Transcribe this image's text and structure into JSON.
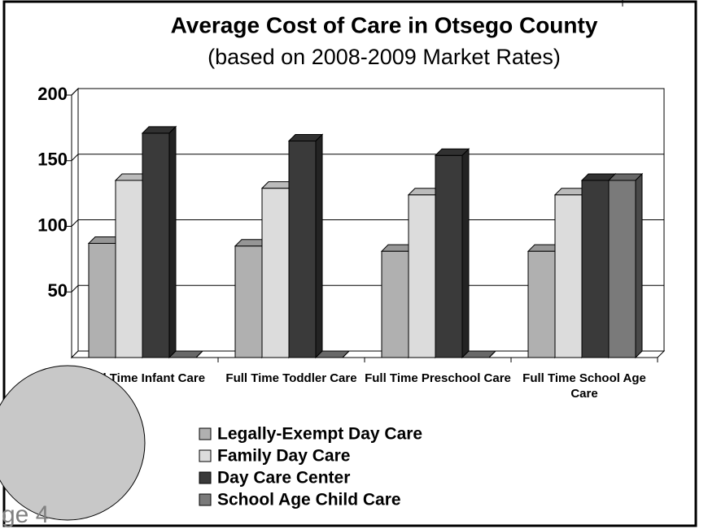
{
  "chart_data": {
    "type": "bar3d",
    "title": "Average Cost of Care in Otsego County",
    "subtitle": "(based on 2008-2009 Market Rates)",
    "categories": [
      "Full Time Infant Care",
      "Full Time Toddler Care",
      "Full Time Preschool Care",
      "Full Time School Age Care"
    ],
    "series": [
      {
        "name": "Legally-Exempt Day Care",
        "color": "#b0b0b0",
        "values": [
          87,
          85,
          81,
          81
        ]
      },
      {
        "name": "Family Day Care",
        "color": "#dcdcdc",
        "values": [
          135,
          129,
          124,
          124
        ]
      },
      {
        "name": "Day Care Center",
        "color": "#3a3a3a",
        "values": [
          171,
          165,
          154,
          135
        ]
      },
      {
        "name": "School Age Child Care",
        "color": "#7a7a7a",
        "values": [
          0,
          0,
          0,
          135
        ]
      }
    ],
    "ylim": [
      0,
      200
    ],
    "yticks": [
      50,
      100,
      150,
      200
    ],
    "grid": true,
    "annotation": "ge 4"
  }
}
